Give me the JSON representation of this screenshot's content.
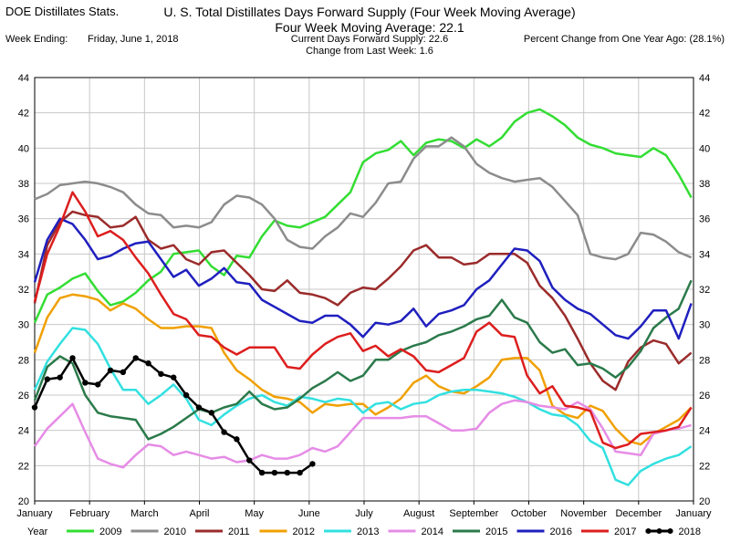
{
  "header": {
    "app_name": "DOE Distillates Stats.",
    "title": "U. S. Total Distillates Days Forward Supply (Four Week Moving Average)",
    "subtitle": "Four Week Moving Average:  22.1",
    "week_label": "Week Ending:",
    "week_value": "Friday, June 1, 2018",
    "current_supply": "Current Days Forward Supply:  22.6",
    "change": "Change from Last Week:   1.6",
    "percent_change": "Percent Change from One Year Ago: (28.1%)"
  },
  "chart_data": {
    "type": "line",
    "xlim": [
      0,
      12
    ],
    "ylim": [
      20,
      44
    ],
    "yticks": [
      20,
      22,
      24,
      26,
      28,
      30,
      32,
      34,
      36,
      38,
      40,
      42,
      44
    ],
    "month_labels": [
      "January",
      "February",
      "March",
      "April",
      "May",
      "June",
      "July",
      "August",
      "September",
      "October",
      "November",
      "December",
      "January"
    ],
    "legend_title": "Year",
    "grid": true,
    "legend_placement": "bottom",
    "series": [
      {
        "name": "2009",
        "color": "#33dd33",
        "marker": false,
        "x": [
          0,
          0.23,
          0.46,
          0.69,
          0.92,
          1.15,
          1.38,
          1.61,
          1.84,
          2.07,
          2.3,
          2.53,
          2.76,
          2.99,
          3.22,
          3.45,
          3.68,
          3.91,
          4.14,
          4.37,
          4.6,
          4.83,
          5.06,
          5.29,
          5.52,
          5.75,
          5.98,
          6.21,
          6.44,
          6.67,
          6.9,
          7.13,
          7.36,
          7.59,
          7.82,
          8.05,
          8.28,
          8.51,
          8.74,
          8.97,
          9.2,
          9.43,
          9.66,
          9.89,
          10.12,
          10.35,
          10.58,
          10.81,
          11.04,
          11.27,
          11.5,
          11.73,
          11.96
        ],
        "y": [
          30.1,
          31.7,
          32.1,
          32.6,
          32.9,
          31.9,
          31.1,
          31.3,
          31.8,
          32.5,
          33.0,
          34.0,
          34.1,
          34.2,
          33.3,
          32.8,
          33.9,
          33.8,
          35.0,
          35.9,
          35.6,
          35.5,
          35.8,
          36.1,
          36.8,
          37.5,
          39.2,
          39.7,
          39.9,
          40.4,
          39.6,
          40.3,
          40.5,
          40.4,
          40.0,
          40.5,
          40.1,
          40.6,
          41.5,
          42.0,
          42.2,
          41.8,
          41.3,
          40.6,
          40.2,
          40.0,
          39.7,
          39.6,
          39.5,
          40.0,
          39.6,
          38.5,
          37.2
        ]
      },
      {
        "name": "2010",
        "color": "#8c8c8c",
        "marker": false,
        "x": [
          0,
          0.23,
          0.46,
          0.69,
          0.92,
          1.15,
          1.38,
          1.61,
          1.84,
          2.07,
          2.3,
          2.53,
          2.76,
          2.99,
          3.22,
          3.45,
          3.68,
          3.91,
          4.14,
          4.37,
          4.6,
          4.83,
          5.06,
          5.29,
          5.52,
          5.75,
          5.98,
          6.21,
          6.44,
          6.67,
          6.9,
          7.13,
          7.36,
          7.59,
          7.82,
          8.05,
          8.28,
          8.51,
          8.74,
          8.97,
          9.2,
          9.43,
          9.66,
          9.89,
          10.12,
          10.35,
          10.58,
          10.81,
          11.04,
          11.27,
          11.5,
          11.73,
          11.96
        ],
        "y": [
          37.1,
          37.4,
          37.9,
          38.0,
          38.1,
          38.0,
          37.8,
          37.5,
          36.8,
          36.3,
          36.2,
          35.5,
          35.6,
          35.5,
          35.8,
          36.8,
          37.3,
          37.2,
          36.8,
          36.0,
          34.8,
          34.4,
          34.3,
          35.0,
          35.5,
          36.3,
          36.1,
          36.9,
          38.0,
          38.1,
          39.4,
          40.1,
          40.1,
          40.6,
          40.1,
          39.1,
          38.6,
          38.3,
          38.1,
          38.2,
          38.3,
          37.8,
          37.0,
          36.2,
          34.0,
          33.8,
          33.7,
          34.0,
          35.2,
          35.1,
          34.7,
          34.1,
          33.8
        ]
      },
      {
        "name": "2011",
        "color": "#9b2b2b",
        "marker": false,
        "x": [
          0,
          0.23,
          0.46,
          0.69,
          0.92,
          1.15,
          1.38,
          1.61,
          1.84,
          2.07,
          2.3,
          2.53,
          2.76,
          2.99,
          3.22,
          3.45,
          3.68,
          3.91,
          4.14,
          4.37,
          4.6,
          4.83,
          5.06,
          5.29,
          5.52,
          5.75,
          5.98,
          6.21,
          6.44,
          6.67,
          6.9,
          7.13,
          7.36,
          7.59,
          7.82,
          8.05,
          8.28,
          8.51,
          8.74,
          8.97,
          9.2,
          9.43,
          9.66,
          9.89,
          10.12,
          10.35,
          10.58,
          10.81,
          11.04,
          11.27,
          11.5,
          11.73,
          11.96
        ],
        "y": [
          31.2,
          34.5,
          35.8,
          36.4,
          36.2,
          36.1,
          35.5,
          35.6,
          36.1,
          34.8,
          34.3,
          34.5,
          33.7,
          33.4,
          34.1,
          34.2,
          33.5,
          32.8,
          32.0,
          31.9,
          32.5,
          31.8,
          31.7,
          31.5,
          31.1,
          31.8,
          32.1,
          32.0,
          32.6,
          33.3,
          34.2,
          34.5,
          33.8,
          33.8,
          33.4,
          33.5,
          34.0,
          34.0,
          34.0,
          33.5,
          32.2,
          31.5,
          30.5,
          29.2,
          27.8,
          26.8,
          26.3,
          27.9,
          28.7,
          29.1,
          28.9,
          27.8,
          28.4
        ]
      },
      {
        "name": "2012",
        "color": "#f0a000",
        "marker": false,
        "x": [
          0,
          0.23,
          0.46,
          0.69,
          0.92,
          1.15,
          1.38,
          1.61,
          1.84,
          2.07,
          2.3,
          2.53,
          2.76,
          2.99,
          3.22,
          3.45,
          3.68,
          3.91,
          4.14,
          4.37,
          4.6,
          4.83,
          5.06,
          5.29,
          5.52,
          5.75,
          5.98,
          6.21,
          6.44,
          6.67,
          6.9,
          7.13,
          7.36,
          7.59,
          7.82,
          8.05,
          8.28,
          8.51,
          8.74,
          8.97,
          9.2,
          9.43,
          9.66,
          9.89,
          10.12,
          10.35,
          10.58,
          10.81,
          11.04,
          11.27,
          11.5,
          11.73,
          11.96
        ],
        "y": [
          28.4,
          30.4,
          31.5,
          31.7,
          31.6,
          31.4,
          30.8,
          31.2,
          30.9,
          30.3,
          29.8,
          29.8,
          29.9,
          29.9,
          29.8,
          28.4,
          27.4,
          26.9,
          26.3,
          25.9,
          25.8,
          25.6,
          25.0,
          25.5,
          25.4,
          25.5,
          25.5,
          24.9,
          25.3,
          25.8,
          26.7,
          27.1,
          26.5,
          26.2,
          26.1,
          26.5,
          27.0,
          28.0,
          28.1,
          28.1,
          27.4,
          25.4,
          24.9,
          24.7,
          25.4,
          25.1,
          24.1,
          23.4,
          23.2,
          23.8,
          24.2,
          24.6,
          25.3
        ]
      },
      {
        "name": "2013",
        "color": "#33e0e0",
        "marker": false,
        "x": [
          0,
          0.23,
          0.46,
          0.69,
          0.92,
          1.15,
          1.38,
          1.61,
          1.84,
          2.07,
          2.3,
          2.53,
          2.76,
          2.99,
          3.22,
          3.45,
          3.68,
          3.91,
          4.14,
          4.37,
          4.6,
          4.83,
          5.06,
          5.29,
          5.52,
          5.75,
          5.98,
          6.21,
          6.44,
          6.67,
          6.9,
          7.13,
          7.36,
          7.59,
          7.82,
          8.05,
          8.28,
          8.51,
          8.74,
          8.97,
          9.2,
          9.43,
          9.66,
          9.89,
          10.12,
          10.35,
          10.58,
          10.81,
          11.04,
          11.27,
          11.5,
          11.73,
          11.96
        ],
        "y": [
          26.3,
          27.9,
          28.9,
          29.8,
          29.7,
          28.9,
          27.5,
          26.3,
          26.3,
          25.5,
          26.0,
          26.6,
          25.8,
          24.6,
          24.3,
          24.9,
          25.4,
          25.8,
          26.0,
          25.6,
          25.4,
          25.9,
          25.8,
          25.6,
          25.8,
          25.7,
          25.0,
          25.5,
          25.6,
          25.2,
          25.5,
          25.6,
          26.0,
          26.2,
          26.3,
          26.3,
          26.2,
          26.1,
          25.9,
          25.6,
          25.2,
          24.9,
          24.8,
          24.3,
          23.4,
          23.0,
          21.2,
          20.9,
          21.7,
          22.1,
          22.4,
          22.6,
          23.1
        ]
      },
      {
        "name": "2014",
        "color": "#e68ce6",
        "marker": false,
        "x": [
          0,
          0.23,
          0.46,
          0.69,
          0.92,
          1.15,
          1.38,
          1.61,
          1.84,
          2.07,
          2.3,
          2.53,
          2.76,
          2.99,
          3.22,
          3.45,
          3.68,
          3.91,
          4.14,
          4.37,
          4.6,
          4.83,
          5.06,
          5.29,
          5.52,
          5.75,
          5.98,
          6.21,
          6.44,
          6.67,
          6.9,
          7.13,
          7.36,
          7.59,
          7.82,
          8.05,
          8.28,
          8.51,
          8.74,
          8.97,
          9.2,
          9.43,
          9.66,
          9.89,
          10.12,
          10.35,
          10.58,
          10.81,
          11.04,
          11.27,
          11.5,
          11.73,
          11.96
        ],
        "y": [
          23.1,
          24.1,
          24.8,
          25.5,
          23.9,
          22.4,
          22.1,
          21.9,
          22.6,
          23.2,
          23.1,
          22.6,
          22.8,
          22.6,
          22.4,
          22.5,
          22.2,
          22.3,
          22.6,
          22.4,
          22.4,
          22.6,
          23.0,
          22.8,
          23.1,
          23.9,
          24.7,
          24.7,
          24.7,
          24.7,
          24.8,
          24.8,
          24.4,
          24.0,
          24.0,
          24.1,
          25.0,
          25.5,
          25.7,
          25.6,
          25.4,
          25.3,
          25.2,
          25.6,
          25.2,
          24.1,
          22.8,
          22.7,
          22.6,
          23.8,
          24.0,
          24.1,
          24.3
        ]
      },
      {
        "name": "2015",
        "color": "#2b7a4b",
        "marker": false,
        "x": [
          0,
          0.23,
          0.46,
          0.69,
          0.92,
          1.15,
          1.38,
          1.61,
          1.84,
          2.07,
          2.3,
          2.53,
          2.76,
          2.99,
          3.22,
          3.45,
          3.68,
          3.91,
          4.14,
          4.37,
          4.6,
          4.83,
          5.06,
          5.29,
          5.52,
          5.75,
          5.98,
          6.21,
          6.44,
          6.67,
          6.9,
          7.13,
          7.36,
          7.59,
          7.82,
          8.05,
          8.28,
          8.51,
          8.74,
          8.97,
          9.2,
          9.43,
          9.66,
          9.89,
          10.12,
          10.35,
          10.58,
          10.81,
          11.04,
          11.27,
          11.5,
          11.73,
          11.96
        ],
        "y": [
          25.7,
          27.6,
          28.2,
          27.8,
          26.0,
          25.0,
          24.8,
          24.7,
          24.6,
          23.5,
          23.8,
          24.2,
          24.7,
          25.2,
          25.0,
          25.3,
          25.5,
          26.2,
          25.5,
          25.2,
          25.3,
          25.8,
          26.4,
          26.8,
          27.3,
          26.8,
          27.1,
          28.0,
          28.0,
          28.5,
          28.8,
          29.0,
          29.4,
          29.6,
          29.9,
          30.3,
          30.5,
          31.4,
          30.4,
          30.1,
          29.0,
          28.4,
          28.6,
          27.7,
          27.8,
          27.5,
          27.0,
          27.6,
          28.5,
          29.8,
          30.4,
          30.9,
          32.5
        ]
      },
      {
        "name": "2016",
        "color": "#1f1fbf",
        "marker": false,
        "x": [
          0,
          0.23,
          0.46,
          0.69,
          0.92,
          1.15,
          1.38,
          1.61,
          1.84,
          2.07,
          2.3,
          2.53,
          2.76,
          2.99,
          3.22,
          3.45,
          3.68,
          3.91,
          4.14,
          4.37,
          4.6,
          4.83,
          5.06,
          5.29,
          5.52,
          5.75,
          5.98,
          6.21,
          6.44,
          6.67,
          6.9,
          7.13,
          7.36,
          7.59,
          7.82,
          8.05,
          8.28,
          8.51,
          8.74,
          8.97,
          9.2,
          9.43,
          9.66,
          9.89,
          10.12,
          10.35,
          10.58,
          10.81,
          11.04,
          11.27,
          11.5,
          11.73,
          11.96
        ],
        "y": [
          32.4,
          34.8,
          36.0,
          35.7,
          34.8,
          33.7,
          33.9,
          34.3,
          34.6,
          34.7,
          33.7,
          32.7,
          33.1,
          32.2,
          32.6,
          33.2,
          32.4,
          32.3,
          31.4,
          31.0,
          30.6,
          30.2,
          30.1,
          30.5,
          30.5,
          30.0,
          29.3,
          30.1,
          30.0,
          30.2,
          30.9,
          29.9,
          30.6,
          30.8,
          31.1,
          32.0,
          32.5,
          33.4,
          34.3,
          34.2,
          33.6,
          32.1,
          31.4,
          30.9,
          30.6,
          30.0,
          29.4,
          29.2,
          29.9,
          30.8,
          30.8,
          29.2,
          31.2
        ]
      },
      {
        "name": "2017",
        "color": "#dd1e1e",
        "marker": false,
        "x": [
          0,
          0.23,
          0.46,
          0.69,
          0.92,
          1.15,
          1.38,
          1.61,
          1.84,
          2.07,
          2.3,
          2.53,
          2.76,
          2.99,
          3.22,
          3.45,
          3.68,
          3.91,
          4.14,
          4.37,
          4.6,
          4.83,
          5.06,
          5.29,
          5.52,
          5.75,
          5.98,
          6.21,
          6.44,
          6.67,
          6.9,
          7.13,
          7.36,
          7.59,
          7.82,
          8.05,
          8.28,
          8.51,
          8.74,
          8.97,
          9.2,
          9.43,
          9.66,
          9.89,
          10.12,
          10.35,
          10.58,
          10.81,
          11.04,
          11.27,
          11.5,
          11.73,
          11.96
        ],
        "y": [
          31.3,
          34.0,
          35.6,
          37.5,
          36.4,
          35.0,
          35.3,
          34.8,
          33.8,
          32.9,
          31.7,
          30.6,
          30.3,
          29.4,
          29.3,
          28.7,
          28.3,
          28.7,
          28.7,
          28.7,
          27.6,
          27.5,
          28.3,
          28.9,
          29.3,
          29.5,
          28.5,
          28.8,
          28.2,
          28.6,
          28.2,
          27.4,
          27.3,
          27.7,
          28.1,
          29.6,
          30.1,
          29.4,
          29.3,
          27.1,
          26.1,
          26.5,
          25.4,
          25.3,
          25.1,
          23.3,
          23.0,
          23.2,
          23.8,
          23.9,
          24.0,
          24.2,
          25.3
        ]
      },
      {
        "name": "2018",
        "color": "#000000",
        "marker": true,
        "x": [
          0,
          0.23,
          0.46,
          0.69,
          0.92,
          1.15,
          1.38,
          1.61,
          1.84,
          2.07,
          2.3,
          2.53,
          2.76,
          2.99,
          3.22,
          3.45,
          3.68,
          3.91,
          4.14,
          4.37,
          4.6,
          4.83,
          5.06,
          5.29
        ],
        "y": [
          25.3,
          26.9,
          27.0,
          28.1,
          26.7,
          26.6,
          27.4,
          27.3,
          28.1,
          27.8,
          27.2,
          27.0,
          26.0,
          25.3,
          25.0,
          23.9,
          23.5,
          22.3,
          21.6,
          21.6,
          21.6,
          21.6,
          22.1,
          null
        ]
      }
    ]
  }
}
